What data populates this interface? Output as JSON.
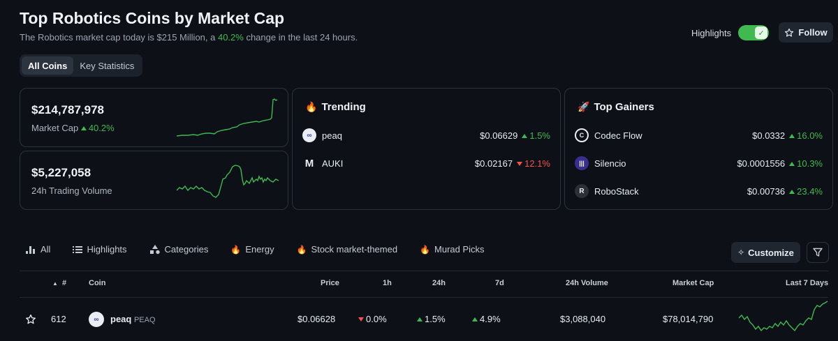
{
  "header": {
    "title": "Top Robotics Coins by Market Cap",
    "subtitle_pre": "The Robotics market cap today is $215 Million, a ",
    "subtitle_change": "40.2%",
    "subtitle_post": " change in the last 24 hours.",
    "highlights_label": "Highlights",
    "highlights_on": true,
    "follow_label": "Follow"
  },
  "tabs": [
    {
      "label": "All Coins",
      "active": true
    },
    {
      "label": "Key Statistics",
      "active": false
    }
  ],
  "market_cap": {
    "value": "$214,787,978",
    "label": "Market Cap",
    "change": "40.2%"
  },
  "volume": {
    "value": "$5,227,058",
    "label": "24h Trading Volume"
  },
  "trending": {
    "title": "Trending",
    "items": [
      {
        "name": "peaq",
        "price": "$0.06629",
        "change": "1.5%",
        "direction": "up"
      },
      {
        "name": "AUKI",
        "price": "$0.02167",
        "change": "12.1%",
        "direction": "down"
      }
    ]
  },
  "top_gainers": {
    "title": "Top Gainers",
    "items": [
      {
        "name": "Codec Flow",
        "price": "$0.0332",
        "change": "16.0%",
        "direction": "up"
      },
      {
        "name": "Silencio",
        "price": "$0.0001556",
        "change": "10.3%",
        "direction": "up"
      },
      {
        "name": "RoboStack",
        "price": "$0.00736",
        "change": "23.4%",
        "direction": "up"
      }
    ]
  },
  "filters": [
    {
      "label": "All",
      "icon": "bar-chart-icon"
    },
    {
      "label": "Highlights",
      "icon": "list-icon"
    },
    {
      "label": "Categories",
      "icon": "shapes-icon"
    },
    {
      "label": "Energy",
      "icon": "fire-icon"
    },
    {
      "label": "Stock market-themed",
      "icon": "fire-icon"
    },
    {
      "label": "Murad Picks",
      "icon": "fire-icon"
    }
  ],
  "customize_label": "Customize",
  "table": {
    "headers": {
      "rank": "#",
      "coin": "Coin",
      "price": "Price",
      "h1": "1h",
      "h24": "24h",
      "d7": "7d",
      "volume": "24h Volume",
      "mcap": "Market Cap",
      "last7": "Last 7 Days"
    },
    "rows": [
      {
        "rank": "612",
        "name": "peaq",
        "symbol": "PEAQ",
        "price": "$0.06628",
        "h1": "0.0%",
        "h1_dir": "down",
        "h24": "1.5%",
        "h24_dir": "up",
        "d7": "4.9%",
        "d7_dir": "up",
        "volume": "$3,088,040",
        "mcap": "$78,014,790"
      }
    ]
  },
  "colors": {
    "background": "#0d1117",
    "positive": "#3fb950",
    "negative": "#f85149",
    "border": "#2d333b"
  }
}
